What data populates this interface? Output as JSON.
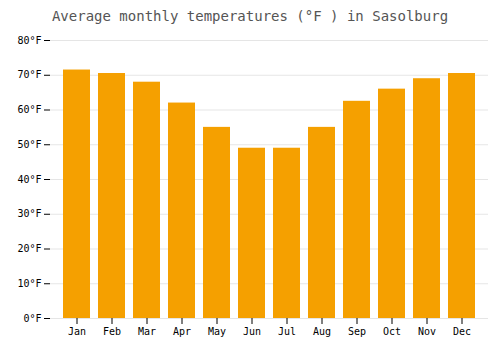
{
  "chart_data": {
    "type": "bar",
    "title": "Average monthly temperatures (°F ) in Sasolburg",
    "categories": [
      "Jan",
      "Feb",
      "Mar",
      "Apr",
      "May",
      "Jun",
      "Jul",
      "Aug",
      "Sep",
      "Oct",
      "Nov",
      "Dec"
    ],
    "values": [
      71.5,
      70.5,
      68.0,
      62.0,
      55.0,
      49.0,
      49.0,
      55.0,
      62.5,
      66.0,
      69.0,
      70.5
    ],
    "color": "#F5A000",
    "ylim": [
      0,
      80
    ],
    "yticks": [
      {
        "value": 0,
        "label": "0°F"
      },
      {
        "value": 10,
        "label": "10°F"
      },
      {
        "value": 20,
        "label": "20°F"
      },
      {
        "value": 30,
        "label": "30°F"
      },
      {
        "value": 40,
        "label": "40°F"
      },
      {
        "value": 50,
        "label": "50°F"
      },
      {
        "value": 60,
        "label": "60°F"
      },
      {
        "value": 70,
        "label": "70°F"
      },
      {
        "value": 80,
        "label": "80°F"
      }
    ],
    "grid": true
  }
}
